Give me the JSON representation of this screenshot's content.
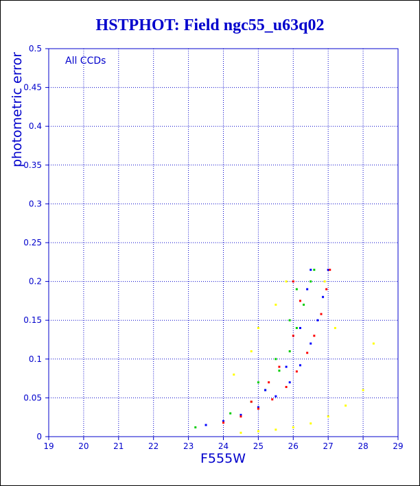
{
  "chart_data": {
    "type": "scatter",
    "title": "HSTPHOT: Field ngc55_u63q02",
    "xlabel": "F555W",
    "ylabel": "photometric error",
    "annotation": "All CCDs",
    "xlim": [
      19,
      29
    ],
    "ylim": [
      0,
      0.5
    ],
    "x_ticks": [
      "19",
      "20",
      "21",
      "22",
      "23",
      "24",
      "25",
      "26",
      "27",
      "28",
      "29"
    ],
    "y_ticks": [
      "0",
      "0.05",
      "0.1",
      "0.15",
      "0.2",
      "0.25",
      "0.3",
      "0.35",
      "0.4",
      "0.45",
      "0.5"
    ],
    "grid": true,
    "grid_color": "#0000cc",
    "series": [
      {
        "color": "#ff0000",
        "points": [
          [
            24.0,
            0.018
          ],
          [
            24.5,
            0.026
          ],
          [
            25.0,
            0.036
          ],
          [
            25.4,
            0.048
          ],
          [
            25.8,
            0.064
          ],
          [
            26.1,
            0.084
          ],
          [
            26.4,
            0.108
          ],
          [
            26.6,
            0.13
          ],
          [
            26.8,
            0.158
          ],
          [
            26.95,
            0.19
          ],
          [
            27.05,
            0.215
          ],
          [
            24.8,
            0.045
          ],
          [
            25.3,
            0.07
          ],
          [
            25.6,
            0.09
          ],
          [
            26.0,
            0.13
          ],
          [
            26.2,
            0.175
          ],
          [
            26.0,
            0.2
          ]
        ]
      },
      {
        "color": "#0000ff",
        "points": [
          [
            23.5,
            0.015
          ],
          [
            24.0,
            0.02
          ],
          [
            24.5,
            0.028
          ],
          [
            25.0,
            0.038
          ],
          [
            25.5,
            0.052
          ],
          [
            25.9,
            0.07
          ],
          [
            26.2,
            0.092
          ],
          [
            26.5,
            0.12
          ],
          [
            26.7,
            0.15
          ],
          [
            26.85,
            0.18
          ],
          [
            27.0,
            0.215
          ],
          [
            25.2,
            0.06
          ],
          [
            25.8,
            0.09
          ],
          [
            26.2,
            0.14
          ],
          [
            26.4,
            0.19
          ],
          [
            26.5,
            0.215
          ]
        ]
      },
      {
        "color": "#00cc00",
        "points": [
          [
            23.2,
            0.012
          ],
          [
            24.2,
            0.03
          ],
          [
            24.8,
            0.045
          ],
          [
            25.2,
            0.06
          ],
          [
            25.6,
            0.085
          ],
          [
            25.9,
            0.11
          ],
          [
            26.1,
            0.14
          ],
          [
            26.3,
            0.17
          ],
          [
            26.5,
            0.2
          ],
          [
            26.6,
            0.215
          ],
          [
            25.0,
            0.07
          ],
          [
            25.5,
            0.1
          ],
          [
            25.9,
            0.15
          ],
          [
            26.1,
            0.19
          ]
        ]
      },
      {
        "color": "#ffff00",
        "points": [
          [
            24.5,
            0.005
          ],
          [
            25.0,
            0.007
          ],
          [
            25.5,
            0.009
          ],
          [
            26.0,
            0.012
          ],
          [
            26.5,
            0.017
          ],
          [
            27.0,
            0.026
          ],
          [
            27.5,
            0.04
          ],
          [
            28.0,
            0.06
          ],
          [
            24.3,
            0.08
          ],
          [
            24.8,
            0.11
          ],
          [
            25.0,
            0.14
          ],
          [
            25.5,
            0.17
          ],
          [
            25.8,
            0.2
          ],
          [
            26.9,
            0.2
          ],
          [
            27.2,
            0.14
          ],
          [
            28.3,
            0.12
          ]
        ]
      }
    ]
  }
}
